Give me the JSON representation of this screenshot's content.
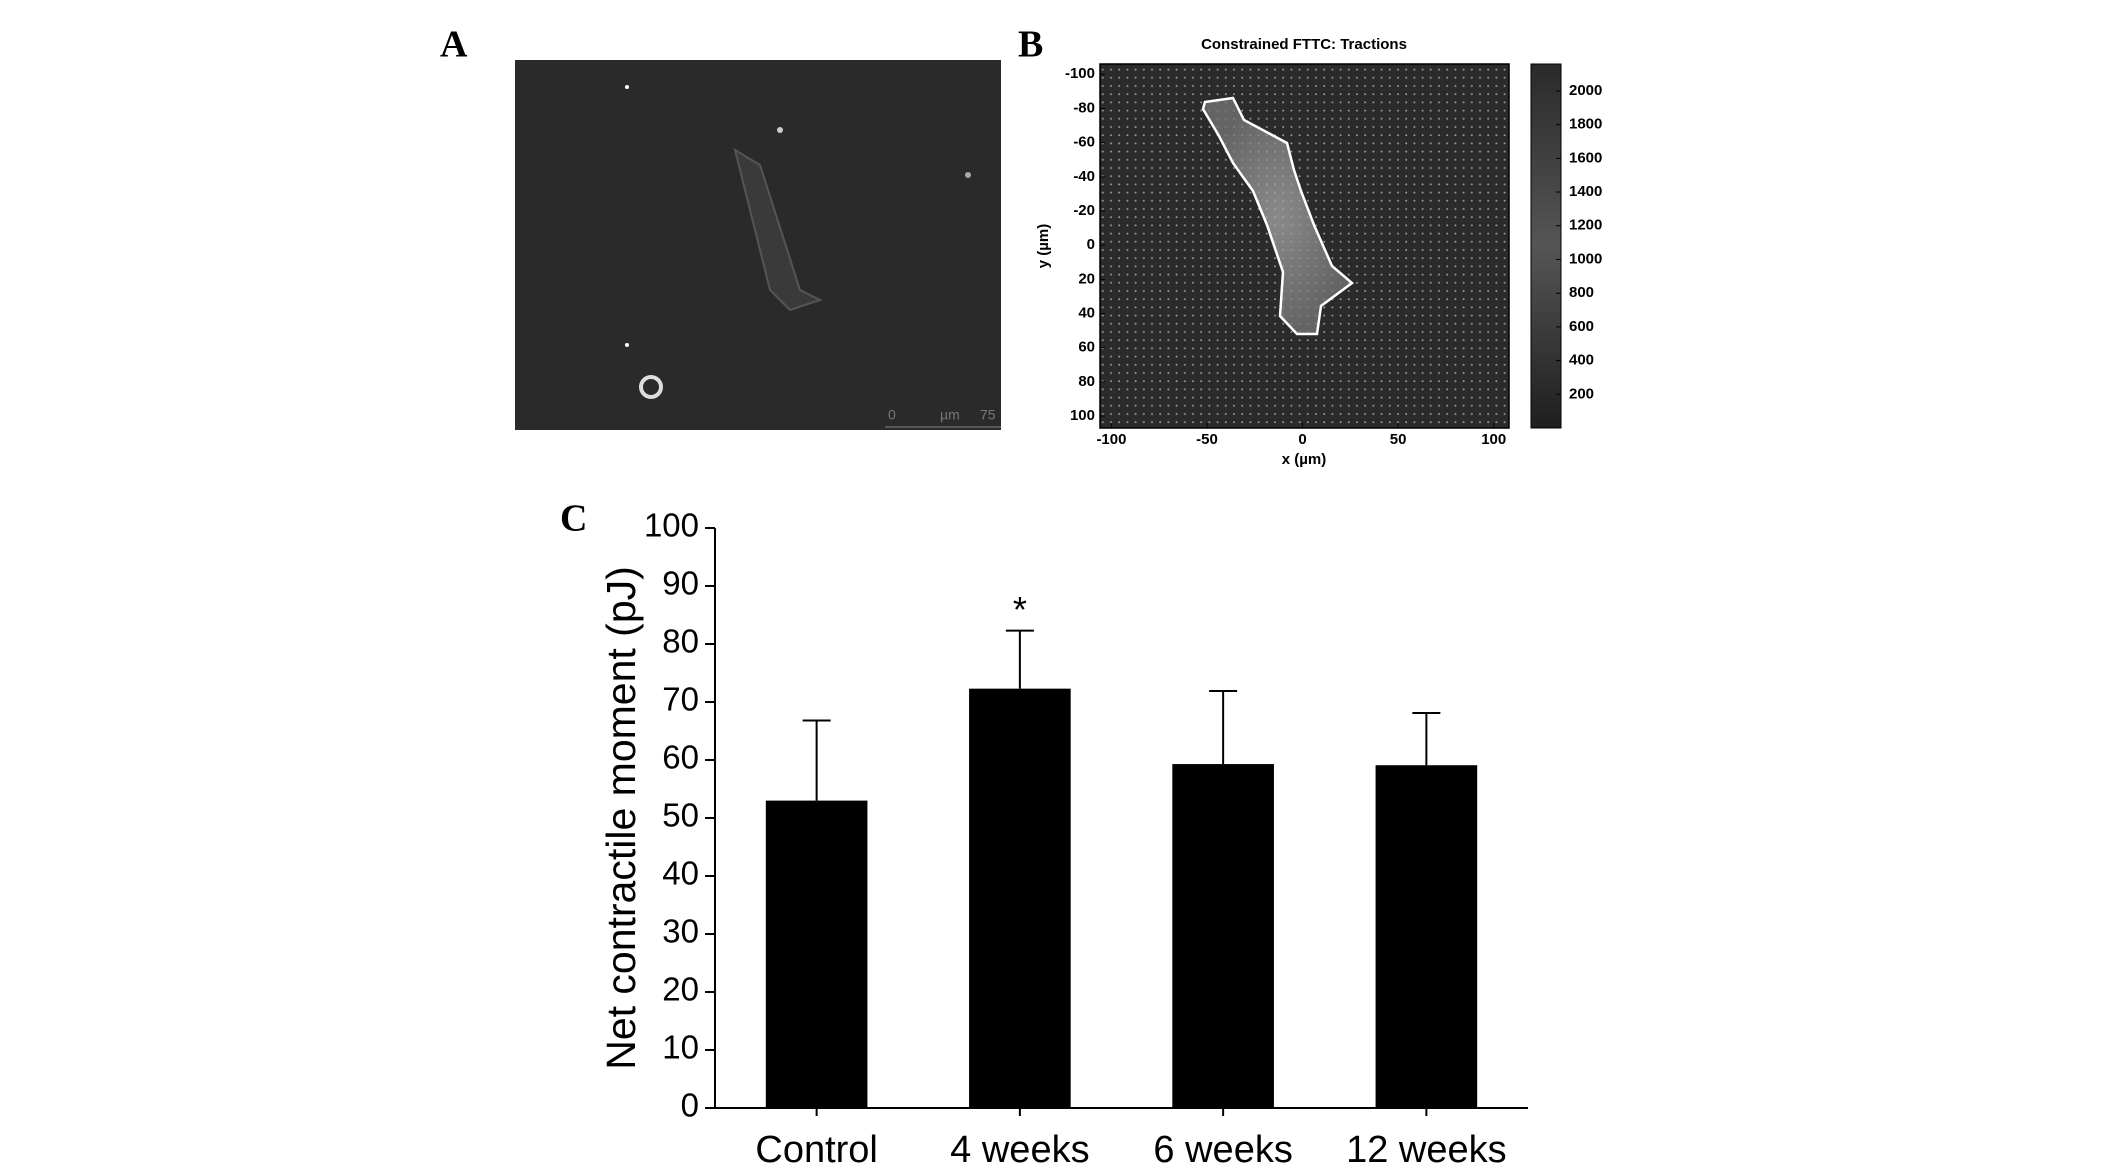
{
  "panel_labels": [
    "A",
    "B",
    "C"
  ],
  "micrograph": {
    "scale_bar": [
      "0",
      "µm",
      "75"
    ]
  },
  "chart_data": [
    {
      "type": "heatmap",
      "title": "Constrained FTTC: Tractions",
      "xlabel": "x (µm)",
      "ylabel": "y (µm)",
      "xlim": [
        -106,
        108
      ],
      "xticks": [
        -100,
        -50,
        0,
        50,
        100
      ],
      "ylim": [
        -106,
        107
      ],
      "yticks": [
        -100,
        -80,
        -60,
        -40,
        -20,
        0,
        20,
        40,
        60,
        80,
        100
      ],
      "y_inverted": true,
      "colorbar_lim": [
        0,
        2160
      ],
      "colorbar_ticks": [
        200,
        400,
        600,
        800,
        1000,
        1200,
        1400,
        1600,
        1800,
        2000
      ]
    },
    {
      "type": "bar",
      "ylabel": "Net contractile moment (pJ)",
      "categories": [
        "Control",
        "4 weeks",
        "6 weeks",
        "12 weeks"
      ],
      "values": [
        53,
        72.3,
        59.3,
        59.1
      ],
      "errors": [
        13.8,
        10,
        12.6,
        9
      ],
      "significance": [
        null,
        "*",
        null,
        null
      ],
      "color": "#000000",
      "ylim": [
        0,
        100
      ],
      "yticks": [
        0,
        10,
        20,
        30,
        40,
        50,
        60,
        70,
        80,
        90,
        100
      ]
    }
  ]
}
